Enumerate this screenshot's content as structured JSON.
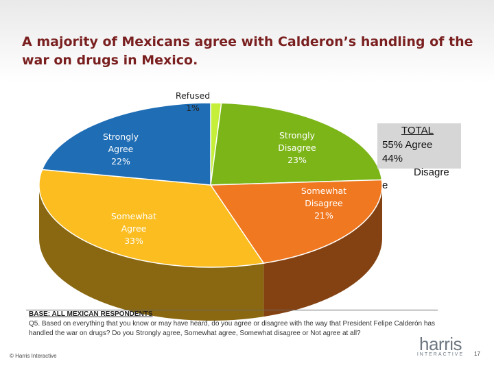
{
  "title": "A majority of Mexicans agree with Calderon’s handling of the war on drugs in Mexico.",
  "chart_data": {
    "type": "pie",
    "title": "A majority of Mexicans agree with Calderon’s handling of the war on drugs in Mexico.",
    "slices": [
      {
        "label": "Refused",
        "value_label": "1%",
        "value": 1,
        "color": "#c6ef3a"
      },
      {
        "label": "Strongly Disagree",
        "value_label": "23%",
        "value": 23,
        "color": "#7cb518"
      },
      {
        "label": "Somewhat Disagree",
        "value_label": "21%",
        "value": 21,
        "color": "#f07820"
      },
      {
        "label": "Somewhat Agree",
        "value_label": "33%",
        "value": 33,
        "color": "#fbbd1f"
      },
      {
        "label": "Strongly Agree",
        "value_label": "22%",
        "value": 22,
        "color": "#1f6db5"
      }
    ]
  },
  "total": {
    "heading": "TOTAL",
    "agree": "55%  Agree",
    "disagree_value": "44%",
    "disagree_label": "Disagre",
    "disagree_tail": "e"
  },
  "footer": {
    "base": "BASE: ALL MEXICAN RESPONDENTS",
    "question": "Q5. Based on everything that you know or may have heard, do you agree or disagree with the way that President Felipe Calderón has handled the war on drugs? Do you Strongly agree, Somewhat agree, Somewhat disagree or Not agree at all?",
    "copyright": "© Harris Interactive",
    "logo_word": "harris",
    "logo_sub": "INTERACTIVE",
    "page_number": "17"
  }
}
